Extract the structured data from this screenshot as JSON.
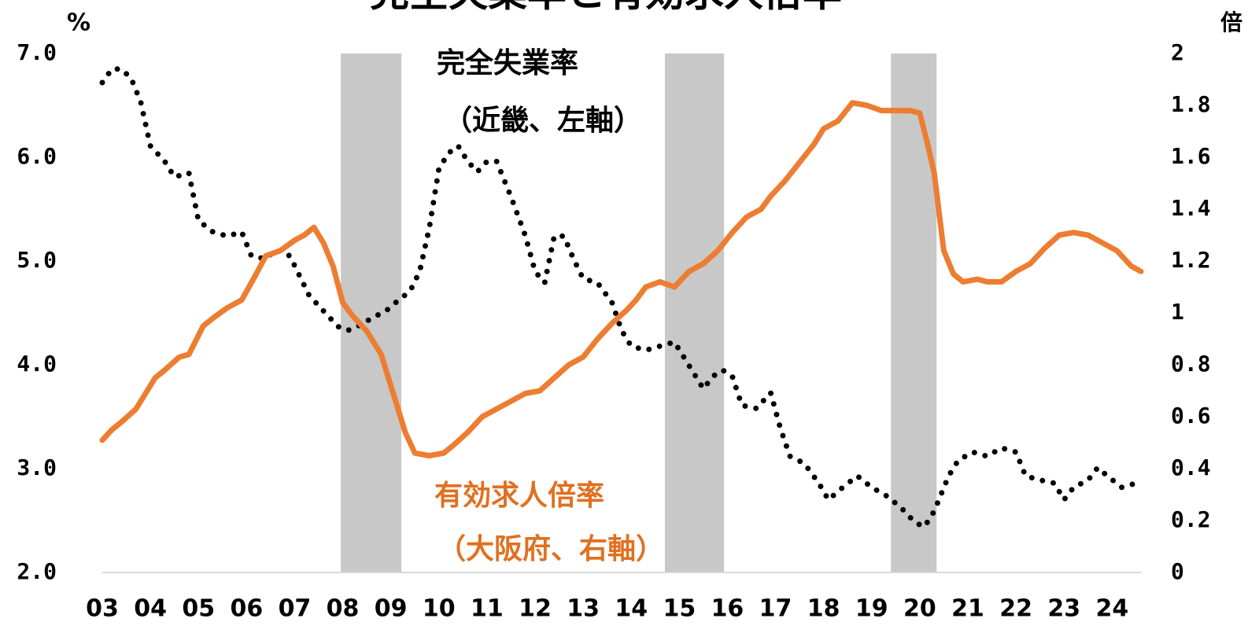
{
  "chart_data": {
    "type": "line",
    "title": "完全失業率と有効求人倍率",
    "y_unit": "%",
    "y2_unit": "倍",
    "xlim": [
      2003,
      2024.6
    ],
    "xticks": [
      {
        "value": 2003,
        "label": "03"
      },
      {
        "value": 2004,
        "label": "04"
      },
      {
        "value": 2005,
        "label": "05"
      },
      {
        "value": 2006,
        "label": "06"
      },
      {
        "value": 2007,
        "label": "07"
      },
      {
        "value": 2008,
        "label": "08"
      },
      {
        "value": 2009,
        "label": "09"
      },
      {
        "value": 2010,
        "label": "10"
      },
      {
        "value": 2011,
        "label": "11"
      },
      {
        "value": 2012,
        "label": "12"
      },
      {
        "value": 2013,
        "label": "13"
      },
      {
        "value": 2014,
        "label": "14"
      },
      {
        "value": 2015,
        "label": "15"
      },
      {
        "value": 2016,
        "label": "16"
      },
      {
        "value": 2017,
        "label": "17"
      },
      {
        "value": 2018,
        "label": "18"
      },
      {
        "value": 2019,
        "label": "19"
      },
      {
        "value": 2020,
        "label": "20"
      },
      {
        "value": 2021,
        "label": "21"
      },
      {
        "value": 2022,
        "label": "22"
      },
      {
        "value": 2023,
        "label": "23"
      },
      {
        "value": 2024,
        "label": "24"
      }
    ],
    "ylim": [
      2,
      7
    ],
    "yticks": [
      {
        "value": 2,
        "label": "2.0"
      },
      {
        "value": 3,
        "label": "3.0"
      },
      {
        "value": 4,
        "label": "4.0"
      },
      {
        "value": 5,
        "label": "5.0"
      },
      {
        "value": 6,
        "label": "6.0"
      },
      {
        "value": 7,
        "label": "7.0"
      }
    ],
    "y2lim": [
      0,
      2
    ],
    "y2ticks": [
      0,
      0.2,
      0.4,
      0.6,
      0.8,
      1,
      1.2,
      1.4,
      1.6,
      1.8,
      2
    ],
    "shaded_periods": [
      [
        2007.96,
        2009.22
      ],
      [
        2014.7,
        2015.93
      ],
      [
        2019.4,
        2020.35
      ]
    ],
    "shade_color": "#c8c8c8",
    "series": [
      {
        "name": "完全失業率",
        "note": "（近畿、左軸）",
        "color": "#000000",
        "style": "dotted",
        "axis": "y",
        "x": [
          2003.0,
          2003.2,
          2003.4,
          2003.6,
          2003.8,
          2004.0,
          2004.3,
          2004.5,
          2004.8,
          2005.0,
          2005.3,
          2005.6,
          2005.9,
          2006.1,
          2006.4,
          2006.6,
          2006.9,
          2007.1,
          2007.3,
          2007.6,
          2007.9,
          2008.1,
          2008.4,
          2008.6,
          2008.9,
          2009.1,
          2009.4,
          2009.6,
          2009.8,
          2010.0,
          2010.2,
          2010.4,
          2010.6,
          2010.8,
          2011.0,
          2011.2,
          2011.5,
          2011.8,
          2012.0,
          2012.2,
          2012.4,
          2012.6,
          2012.8,
          2013.0,
          2013.3,
          2013.6,
          2013.8,
          2014.0,
          2014.3,
          2014.6,
          2014.9,
          2015.1,
          2015.3,
          2015.5,
          2015.7,
          2015.9,
          2016.1,
          2016.3,
          2016.6,
          2016.9,
          2017.1,
          2017.3,
          2017.6,
          2017.9,
          2018.1,
          2018.4,
          2018.7,
          2019.0,
          2019.3,
          2019.6,
          2019.9,
          2020.1,
          2020.3,
          2020.6,
          2020.8,
          2021.1,
          2021.4,
          2021.7,
          2022.0,
          2022.2,
          2022.5,
          2022.8,
          2023.0,
          2023.2,
          2023.5,
          2023.7,
          2023.9,
          2024.2,
          2024.5
        ],
        "values": [
          6.72,
          6.85,
          6.85,
          6.76,
          6.53,
          6.11,
          5.96,
          5.81,
          5.85,
          5.39,
          5.28,
          5.24,
          5.28,
          5.05,
          5.02,
          5.11,
          5.05,
          4.86,
          4.67,
          4.52,
          4.37,
          4.33,
          4.39,
          4.45,
          4.52,
          4.6,
          4.71,
          4.9,
          5.32,
          5.89,
          6.04,
          6.11,
          5.96,
          5.86,
          5.96,
          5.96,
          5.62,
          5.24,
          4.9,
          4.79,
          5.24,
          5.24,
          5.02,
          4.83,
          4.79,
          4.6,
          4.33,
          4.18,
          4.14,
          4.18,
          4.22,
          4.07,
          3.92,
          3.77,
          3.89,
          3.95,
          3.89,
          3.61,
          3.58,
          3.73,
          3.39,
          3.12,
          3.05,
          2.86,
          2.7,
          2.82,
          2.93,
          2.82,
          2.74,
          2.63,
          2.48,
          2.44,
          2.59,
          2.93,
          3.08,
          3.16,
          3.12,
          3.2,
          3.16,
          2.93,
          2.89,
          2.86,
          2.7,
          2.82,
          2.89,
          3.01,
          2.93,
          2.82,
          2.86
        ]
      },
      {
        "name": "有効求人倍率",
        "note": "（大阪府、右軸）",
        "color": "#ed7d31",
        "style": "solid",
        "axis": "y2",
        "x": [
          2003.0,
          2003.2,
          2003.4,
          2003.7,
          2003.9,
          2004.1,
          2004.3,
          2004.6,
          2004.8,
          2005.1,
          2005.3,
          2005.6,
          2005.9,
          2006.2,
          2006.4,
          2006.7,
          2007.0,
          2007.2,
          2007.4,
          2007.6,
          2007.8,
          2008.0,
          2008.2,
          2008.5,
          2008.8,
          2009.0,
          2009.3,
          2009.5,
          2009.8,
          2010.1,
          2010.3,
          2010.6,
          2010.9,
          2011.2,
          2011.5,
          2011.8,
          2012.1,
          2012.4,
          2012.7,
          2013.0,
          2013.3,
          2013.6,
          2013.9,
          2014.1,
          2014.3,
          2014.6,
          2014.9,
          2015.2,
          2015.5,
          2015.8,
          2016.1,
          2016.4,
          2016.7,
          2016.9,
          2017.2,
          2017.5,
          2017.8,
          2018.0,
          2018.3,
          2018.6,
          2018.9,
          2019.2,
          2019.5,
          2019.8,
          2020.0,
          2020.15,
          2020.3,
          2020.4,
          2020.5,
          2020.7,
          2020.9,
          2021.2,
          2021.4,
          2021.7,
          2022.0,
          2022.3,
          2022.6,
          2022.9,
          2023.2,
          2023.5,
          2023.8,
          2024.1,
          2024.4,
          2024.6
        ],
        "values": [
          0.51,
          0.55,
          0.58,
          0.63,
          0.69,
          0.75,
          0.78,
          0.83,
          0.84,
          0.95,
          0.98,
          1.02,
          1.05,
          1.15,
          1.22,
          1.24,
          1.28,
          1.3,
          1.33,
          1.27,
          1.18,
          1.04,
          0.99,
          0.93,
          0.84,
          0.72,
          0.54,
          0.46,
          0.45,
          0.46,
          0.49,
          0.54,
          0.6,
          0.63,
          0.66,
          0.69,
          0.7,
          0.75,
          0.8,
          0.83,
          0.9,
          0.96,
          1.01,
          1.05,
          1.1,
          1.12,
          1.1,
          1.16,
          1.19,
          1.24,
          1.31,
          1.37,
          1.4,
          1.45,
          1.51,
          1.58,
          1.65,
          1.71,
          1.74,
          1.81,
          1.8,
          1.78,
          1.78,
          1.78,
          1.77,
          1.66,
          1.54,
          1.39,
          1.24,
          1.15,
          1.12,
          1.13,
          1.12,
          1.12,
          1.16,
          1.19,
          1.25,
          1.3,
          1.31,
          1.3,
          1.27,
          1.24,
          1.18,
          1.16
        ]
      }
    ]
  }
}
